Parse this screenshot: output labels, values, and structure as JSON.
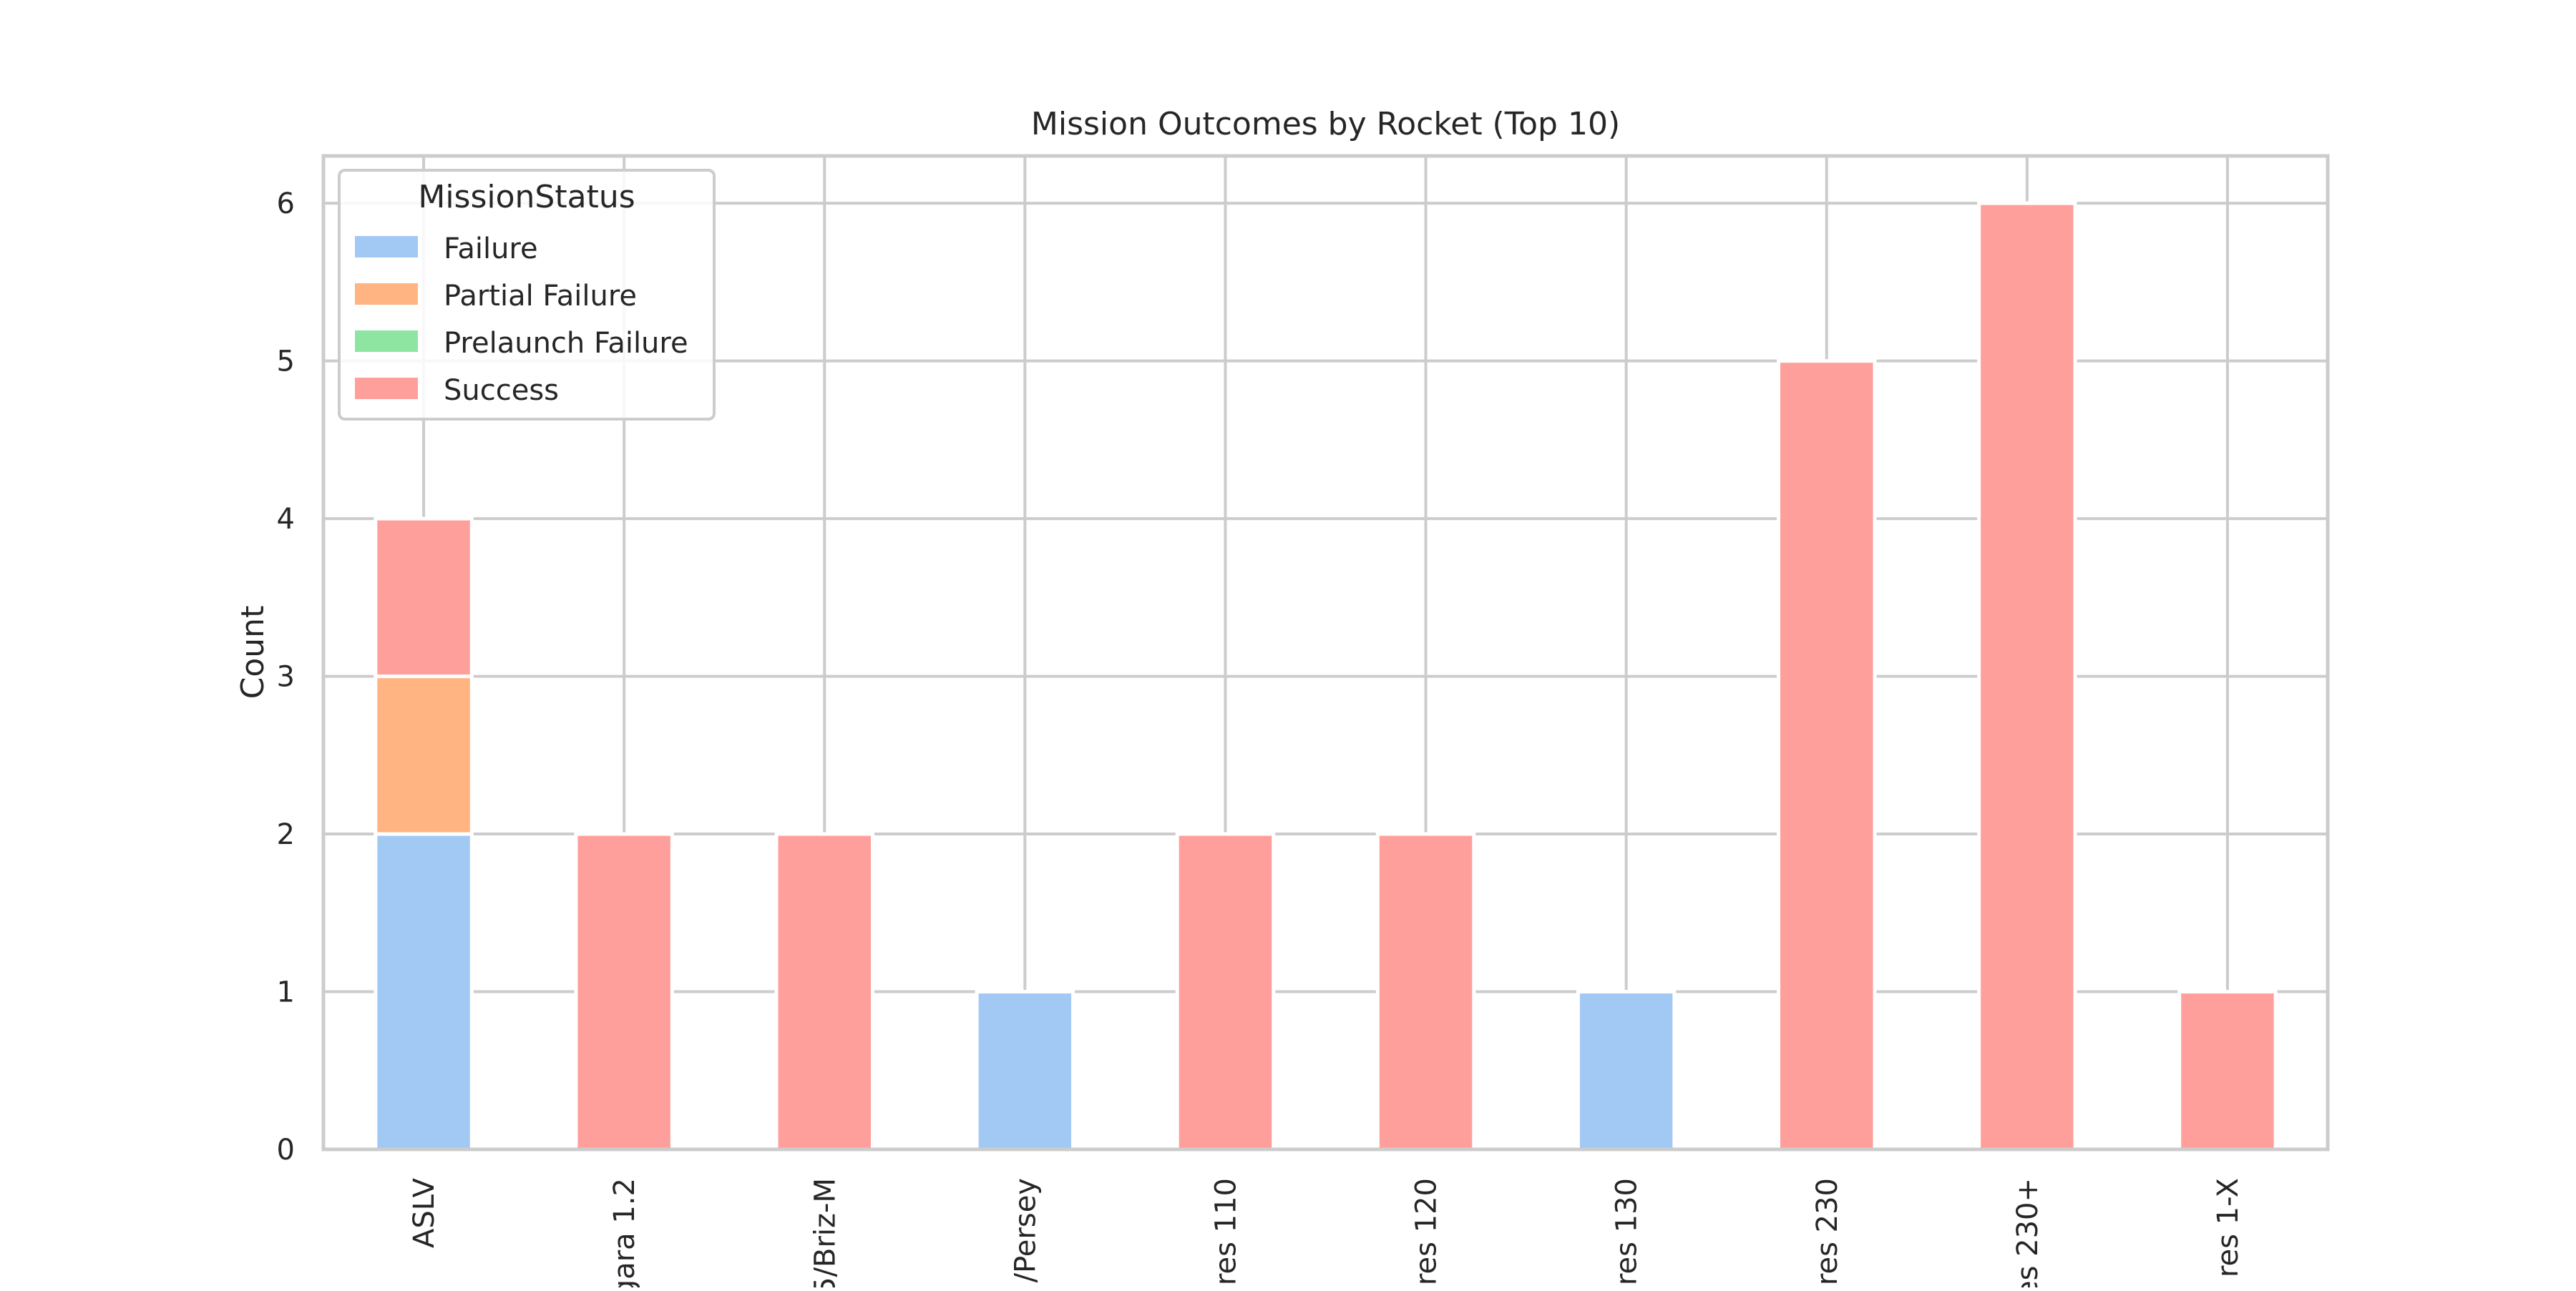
{
  "chart_data": {
    "type": "bar",
    "stacked": true,
    "title": "Mission Outcomes by Rocket (Top 10)",
    "xlabel": "",
    "ylabel": "Count",
    "ylim": [
      0,
      6.3
    ],
    "yticks": [
      0,
      1,
      2,
      3,
      4,
      5,
      6
    ],
    "grid": true,
    "categories": [
      "ASLV",
      "gara 1.2",
      "5/Briz-M",
      "/Persey",
      "res 110",
      "res 120",
      "res 130",
      "res 230",
      "es 230+",
      "res 1-X"
    ],
    "series": [
      {
        "name": "Failure",
        "color": "#a1c9f4",
        "values": [
          2,
          0,
          0,
          1,
          0,
          0,
          1,
          0,
          0,
          0
        ]
      },
      {
        "name": "Partial Failure",
        "color": "#ffb482",
        "values": [
          1,
          0,
          0,
          0,
          0,
          0,
          0,
          0,
          0,
          0
        ]
      },
      {
        "name": "Prelaunch Failure",
        "color": "#8de5a1",
        "values": [
          0,
          0,
          0,
          0,
          0,
          0,
          0,
          0,
          0,
          0
        ]
      },
      {
        "name": "Success",
        "color": "#ff9f9b",
        "values": [
          1,
          2,
          2,
          0,
          2,
          2,
          0,
          5,
          6,
          1
        ]
      }
    ],
    "legend": {
      "title": "MissionStatus",
      "placement": "top-left"
    }
  }
}
